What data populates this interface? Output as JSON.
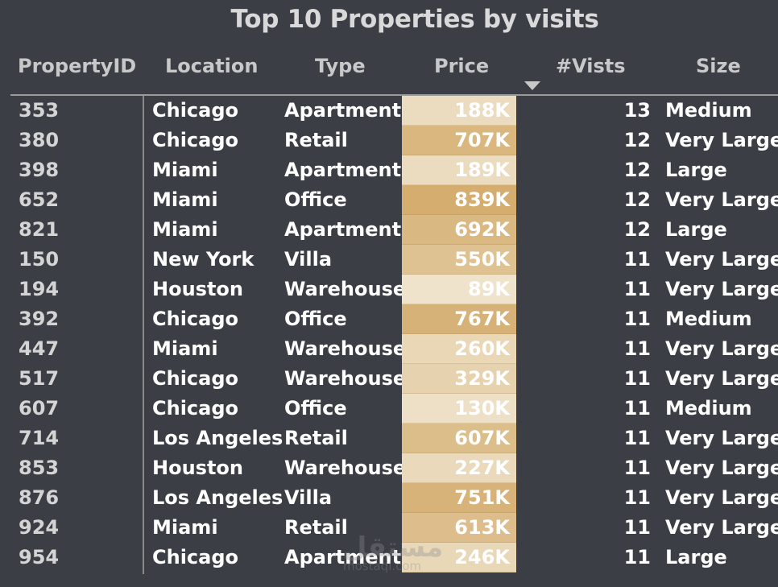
{
  "title": "Top 10 Properties by visits",
  "headers": {
    "id": "PropertyID",
    "location": "Location",
    "type": "Type",
    "price": "Price",
    "visits": "#Vists",
    "size": "Size"
  },
  "sort": {
    "column": "visits",
    "direction": "descending",
    "icon": "sort-descending-icon"
  },
  "price_colors": {
    "low": "#efe3cb",
    "high": "#d4ad6f"
  },
  "rows": [
    {
      "id": "353",
      "location": "Chicago",
      "type": "Apartment",
      "price": "188K",
      "price_value": 188,
      "visits": "13",
      "size": "Medium"
    },
    {
      "id": "380",
      "location": "Chicago",
      "type": "Retail",
      "price": "707K",
      "price_value": 707,
      "visits": "12",
      "size": "Very Large"
    },
    {
      "id": "398",
      "location": "Miami",
      "type": "Apartment",
      "price": "189K",
      "price_value": 189,
      "visits": "12",
      "size": "Large"
    },
    {
      "id": "652",
      "location": "Miami",
      "type": "Office",
      "price": "839K",
      "price_value": 839,
      "visits": "12",
      "size": "Very Large"
    },
    {
      "id": "821",
      "location": "Miami",
      "type": "Apartment",
      "price": "692K",
      "price_value": 692,
      "visits": "12",
      "size": "Large"
    },
    {
      "id": "150",
      "location": "New York",
      "type": "Villa",
      "price": "550K",
      "price_value": 550,
      "visits": "11",
      "size": "Very Large"
    },
    {
      "id": "194",
      "location": "Houston",
      "type": "Warehouse",
      "price": "89K",
      "price_value": 89,
      "visits": "11",
      "size": "Very Large"
    },
    {
      "id": "392",
      "location": "Chicago",
      "type": "Office",
      "price": "767K",
      "price_value": 767,
      "visits": "11",
      "size": "Medium"
    },
    {
      "id": "447",
      "location": "Miami",
      "type": "Warehouse",
      "price": "260K",
      "price_value": 260,
      "visits": "11",
      "size": "Very Large"
    },
    {
      "id": "517",
      "location": "Chicago",
      "type": "Warehouse",
      "price": "329K",
      "price_value": 329,
      "visits": "11",
      "size": "Very Large"
    },
    {
      "id": "607",
      "location": "Chicago",
      "type": "Office",
      "price": "130K",
      "price_value": 130,
      "visits": "11",
      "size": "Medium"
    },
    {
      "id": "714",
      "location": "Los Angeles",
      "type": "Retail",
      "price": "607K",
      "price_value": 607,
      "visits": "11",
      "size": "Very Large"
    },
    {
      "id": "853",
      "location": "Houston",
      "type": "Warehouse",
      "price": "227K",
      "price_value": 227,
      "visits": "11",
      "size": "Very Large"
    },
    {
      "id": "876",
      "location": "Los Angeles",
      "type": "Villa",
      "price": "751K",
      "price_value": 751,
      "visits": "11",
      "size": "Very Large"
    },
    {
      "id": "924",
      "location": "Miami",
      "type": "Retail",
      "price": "613K",
      "price_value": 613,
      "visits": "11",
      "size": "Very Large"
    },
    {
      "id": "954",
      "location": "Chicago",
      "type": "Apartment",
      "price": "246K",
      "price_value": 246,
      "visits": "11",
      "size": "Large"
    }
  ],
  "watermark": {
    "arabic": "مستقل",
    "latin": "mostaql.com"
  }
}
